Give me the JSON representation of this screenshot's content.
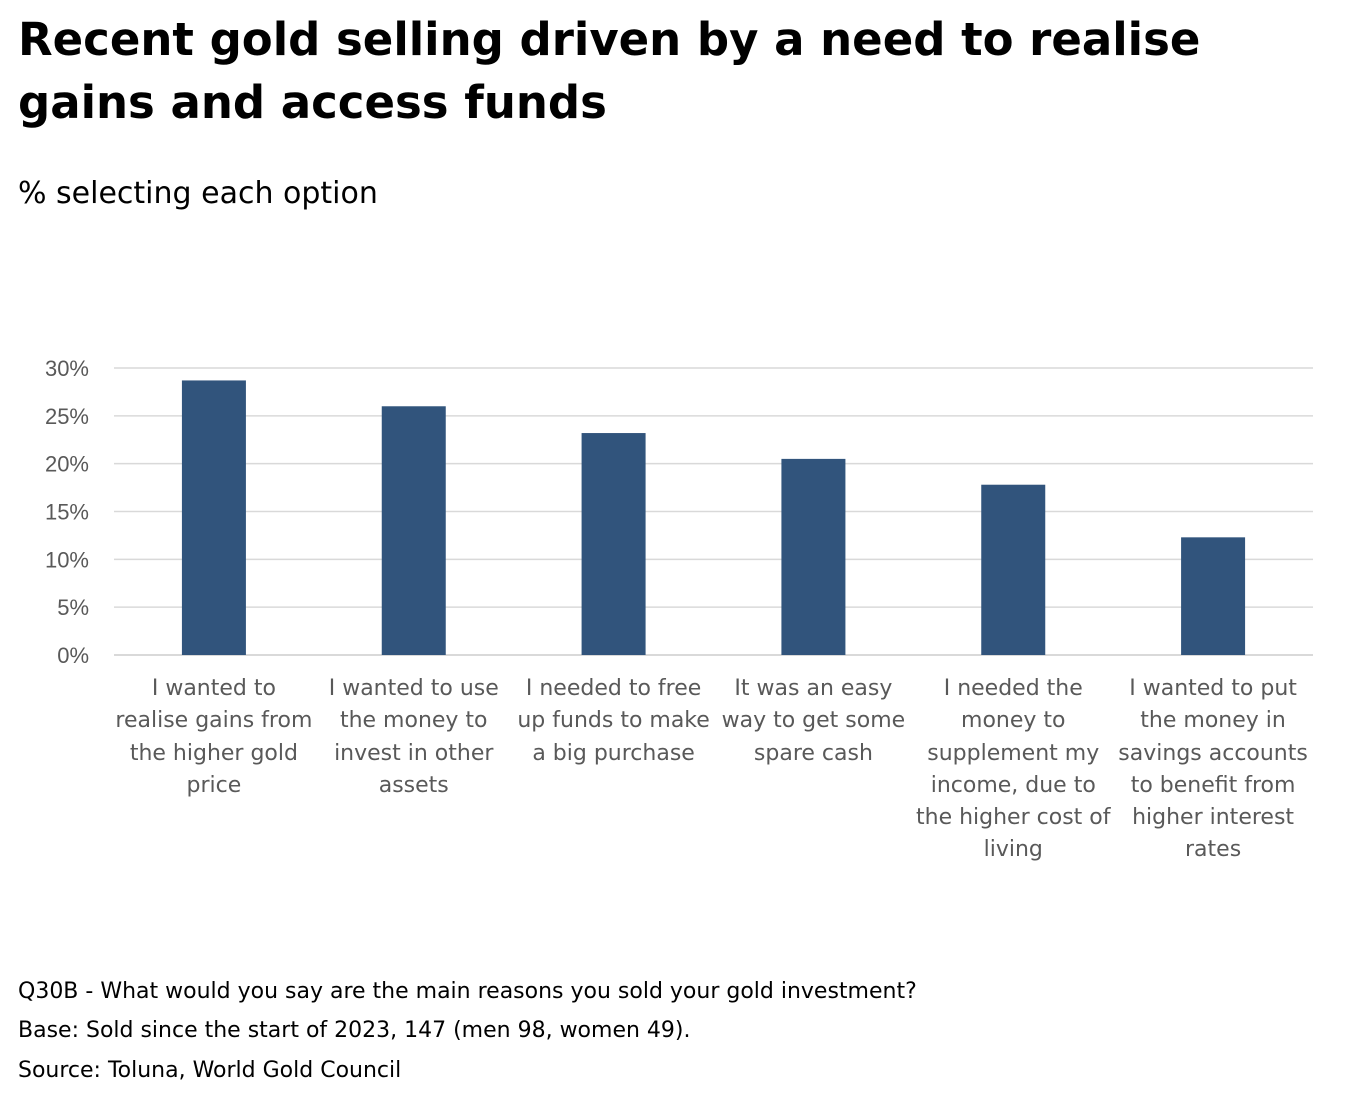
{
  "title": "Recent gold selling driven by a need to realise gains and access funds",
  "subtitle": "% selecting each option",
  "chart_data": {
    "type": "bar",
    "categories": [
      "I wanted to realise gains from the higher gold price",
      "I wanted to use the money to invest in other assets",
      "I needed to free up funds to make a big purchase",
      "It was an easy way to get some spare cash",
      "I needed the money to supplement my income, due to the higher cost of living",
      "I wanted to put the money in savings accounts to benefit from higher interest rates"
    ],
    "values": [
      28.7,
      26.0,
      23.2,
      20.5,
      17.8,
      12.3
    ],
    "yticks": [
      "0%",
      "5%",
      "10%",
      "15%",
      "20%",
      "25%",
      "30%"
    ],
    "ylim": [
      0,
      30
    ],
    "grid": true,
    "bar_color": "#31547c",
    "grid_color": "#d9d9d9"
  },
  "footer": {
    "question": "Q30B - What would you say are the main reasons you sold your gold investment?",
    "base": "Base: Sold since the start of 2023, 147 (men 98, women 49).",
    "source": "Source: Toluna, World Gold Council"
  }
}
